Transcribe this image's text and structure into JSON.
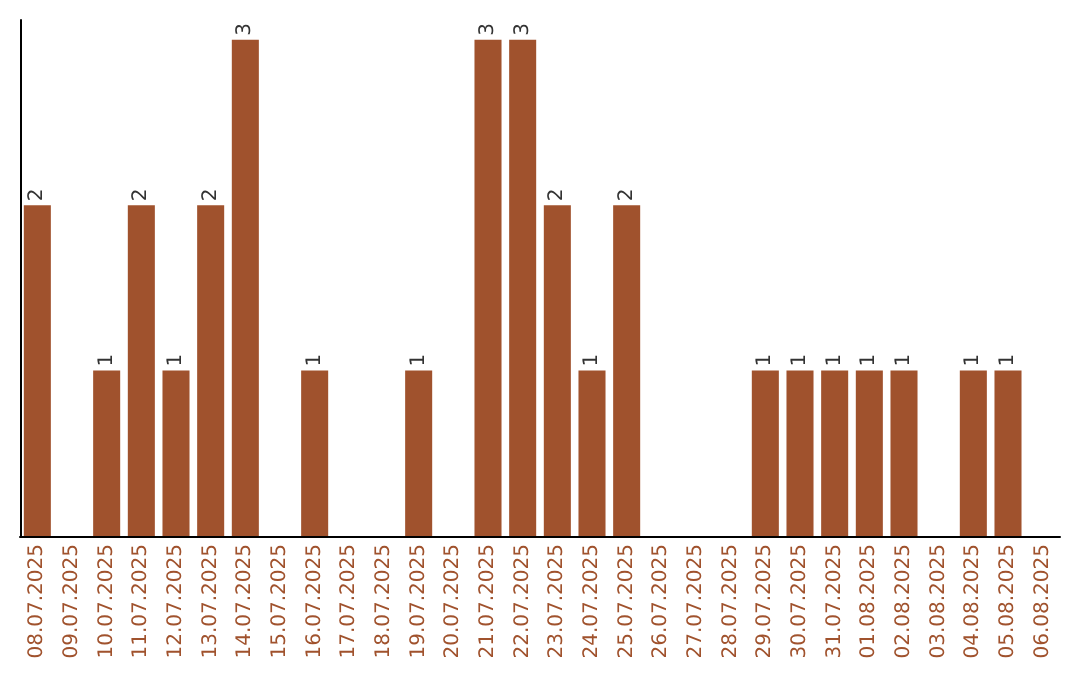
{
  "chart_data": {
    "type": "bar",
    "categories": [
      "08.07.2025",
      "09.07.2025",
      "10.07.2025",
      "11.07.2025",
      "12.07.2025",
      "13.07.2025",
      "14.07.2025",
      "15.07.2025",
      "16.07.2025",
      "17.07.2025",
      "18.07.2025",
      "19.07.2025",
      "20.07.2025",
      "21.07.2025",
      "22.07.2025",
      "23.07.2025",
      "24.07.2025",
      "25.07.2025",
      "26.07.2025",
      "27.07.2025",
      "28.07.2025",
      "29.07.2025",
      "30.07.2025",
      "31.07.2025",
      "01.08.2025",
      "02.08.2025",
      "03.08.2025",
      "04.08.2025",
      "05.08.2025",
      "06.08.2025"
    ],
    "values": [
      2,
      0,
      1,
      2,
      1,
      2,
      3,
      0,
      1,
      0,
      0,
      1,
      0,
      3,
      3,
      2,
      1,
      2,
      0,
      0,
      0,
      1,
      1,
      1,
      1,
      1,
      0,
      1,
      1,
      0
    ],
    "value_labels": [
      "2",
      null,
      "1",
      "2",
      "1",
      "2",
      "3",
      null,
      "1",
      null,
      null,
      "1",
      null,
      "3",
      "3",
      "2",
      "1",
      "2",
      null,
      null,
      null,
      "1",
      "1",
      "1",
      "1",
      "1",
      null,
      "1",
      "1",
      null
    ],
    "color": "#a0522d",
    "grid": false,
    "tick_labels": "x"
  }
}
